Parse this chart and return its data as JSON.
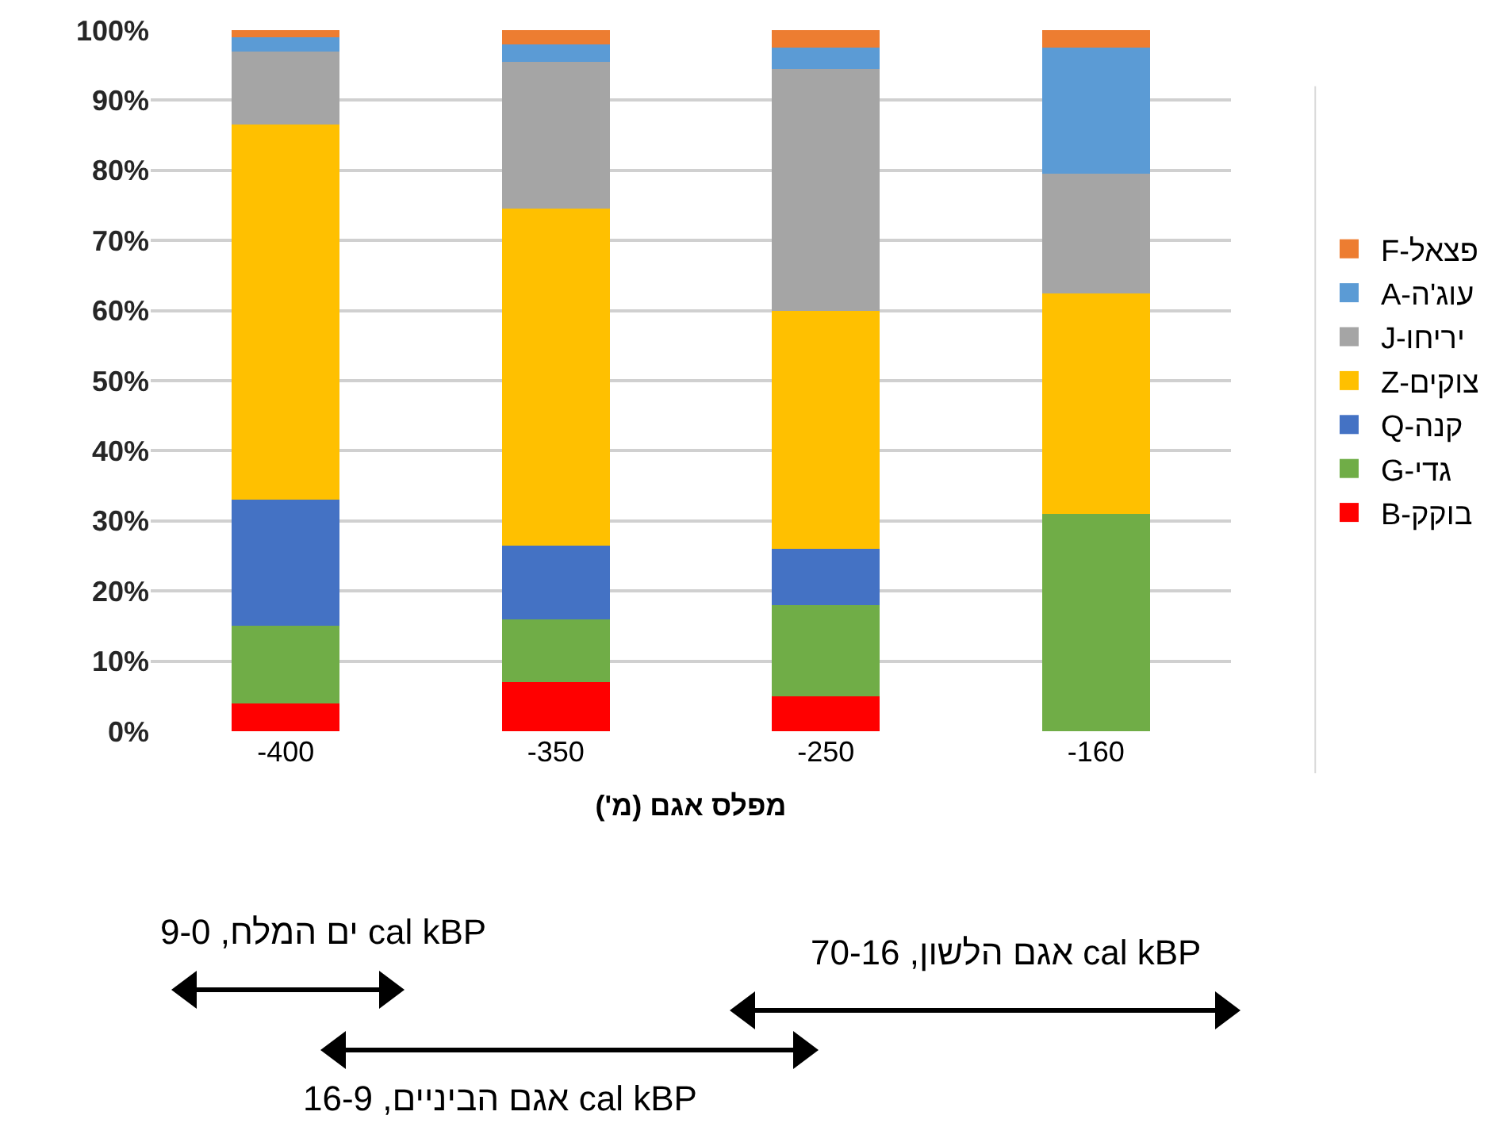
{
  "chart_data": {
    "type": "bar",
    "stacked": true,
    "xlabel": "מפלס אגם (מ')",
    "categories": [
      "-400",
      "-350",
      "-250",
      "-160"
    ],
    "series": [
      {
        "name": "B-בוקק",
        "color": "#ff0000",
        "values": [
          4,
          7,
          5,
          0
        ]
      },
      {
        "name": "G-גדי",
        "color": "#70ad47",
        "values": [
          11,
          9,
          13,
          31
        ]
      },
      {
        "name": "Q-קנה",
        "color": "#4472c4",
        "values": [
          18,
          10.5,
          8,
          0
        ]
      },
      {
        "name": "Z-צוקים",
        "color": "#ffc000",
        "values": [
          53.5,
          48,
          34,
          31.5
        ]
      },
      {
        "name": "J-יריחו",
        "color": "#a5a5a5",
        "values": [
          10.5,
          21,
          34.5,
          17
        ]
      },
      {
        "name": "A-עוג'ה",
        "color": "#5b9bd5",
        "values": [
          2,
          2.5,
          3,
          18
        ]
      },
      {
        "name": "F-פצאל",
        "color": "#ed7d31",
        "values": [
          1,
          2,
          2.5,
          2.5
        ]
      }
    ],
    "ylim": [
      0,
      100
    ],
    "yticks": [
      {
        "value": 0,
        "label": "0%"
      },
      {
        "value": 10,
        "label": "10%"
      },
      {
        "value": 20,
        "label": "20%"
      },
      {
        "value": 30,
        "label": "30%"
      },
      {
        "value": 40,
        "label": "40%"
      },
      {
        "value": 50,
        "label": "50%"
      },
      {
        "value": 60,
        "label": "60%"
      },
      {
        "value": 70,
        "label": "70%"
      },
      {
        "value": 80,
        "label": "80%"
      },
      {
        "value": 90,
        "label": "90%"
      },
      {
        "value": 100,
        "label": "100%"
      }
    ],
    "grid": "y",
    "legend": "right",
    "annotations": [
      "ים המלח, 9-0 cal kBP",
      "אגם הלשון, 70-16 cal kBP",
      "אגם הביניים, 16-9 cal kBP"
    ]
  }
}
